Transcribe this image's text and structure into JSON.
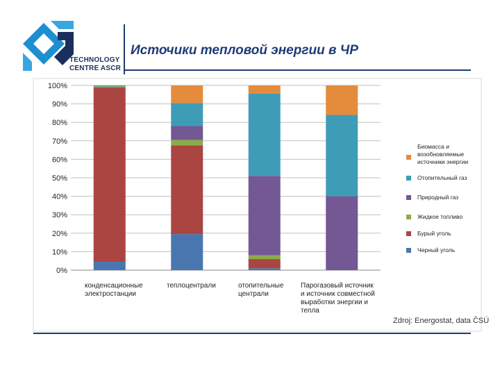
{
  "header": {
    "title": "Источики тепловой энергии в ЧР",
    "logo_line1": "TECHNOLOGY",
    "logo_line2": "CENTRE ASCR"
  },
  "source": "Zdroj: Energostat, data ČSÚ",
  "colors": {
    "black_coal": "#4a76b0",
    "brown_coal": "#ab4542",
    "liquid": "#8bac4a",
    "gas": "#745894",
    "heating": "#3f9cb6",
    "biomass": "#e48b3c"
  },
  "chart_data": {
    "type": "stacked-bar",
    "title": "",
    "ylim": [
      0,
      100
    ],
    "y_ticks": [
      "0%",
      "10%",
      "20%",
      "30%",
      "40%",
      "50%",
      "60%",
      "70%",
      "80%",
      "90%",
      "100%"
    ],
    "categories": [
      "конденсационные электростанции",
      "теплоцентрали",
      "отопительные централи",
      "Парогазовый источник и источник совместной выработки энергии и тепла"
    ],
    "series": [
      {
        "name": "Черный уголь",
        "color_key": "black_coal",
        "values": [
          4.5,
          19.5,
          1,
          0
        ]
      },
      {
        "name": "Бурый уголь",
        "color_key": "brown_coal",
        "values": [
          94.5,
          48,
          5,
          0
        ]
      },
      {
        "name": "Жидкое топливо",
        "color_key": "liquid",
        "values": [
          0.5,
          3,
          2,
          0
        ]
      },
      {
        "name": "Природный газ",
        "color_key": "gas",
        "values": [
          0,
          7.5,
          43,
          40
        ]
      },
      {
        "name": "Отопительный газ",
        "color_key": "heating",
        "values": [
          0.5,
          12.5,
          44.5,
          44
        ]
      },
      {
        "name": "Биомасса и возобновляемые источники энергии",
        "color_key": "biomass",
        "values": [
          0,
          9.5,
          4.5,
          16
        ]
      }
    ]
  }
}
